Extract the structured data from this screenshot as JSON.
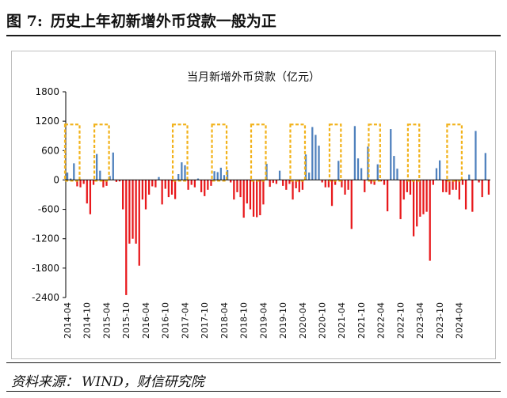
{
  "figure": {
    "label": "图 7:",
    "title": "历史上年初新增外币贷款一般为正"
  },
  "source": {
    "label": "资料来源：",
    "text": "WIND，财信研究院"
  },
  "colors": {
    "positive": "#4f81bd",
    "negative": "#e8191c",
    "highlight": "#f2b21a",
    "axis": "#000000"
  },
  "chart_data": {
    "type": "bar",
    "title": "当月新增外币贷款（亿元）",
    "xlabel": "",
    "ylabel": "",
    "ylim": [
      -2400,
      1800
    ],
    "yticks": [
      1800,
      1200,
      600,
      0,
      -600,
      -1200,
      -1800,
      -2400
    ],
    "xtick_labels": [
      "2014-04",
      "2014-10",
      "2015-04",
      "2015-10",
      "2016-04",
      "2016-10",
      "2017-04",
      "2017-10",
      "2018-04",
      "2018-10",
      "2019-04",
      "2019-10",
      "2020-04",
      "2020-10",
      "2021-04",
      "2021-10",
      "2022-04",
      "2022-10",
      "2023-04",
      "2023-10",
      "2024-04"
    ],
    "start_month": "2014-04",
    "series": [
      {
        "name": "当月新增外币贷款",
        "values": [
          150,
          30,
          340,
          -130,
          -150,
          -80,
          -480,
          -700,
          -100,
          530,
          190,
          -150,
          -120,
          80,
          560,
          -40,
          -30,
          -600,
          -2350,
          -1300,
          -1200,
          -1300,
          -1750,
          -400,
          -600,
          -300,
          -130,
          -150,
          60,
          -500,
          -180,
          -350,
          -300,
          -390,
          120,
          360,
          300,
          -200,
          -100,
          -150,
          30,
          -250,
          -330,
          -200,
          -120,
          180,
          160,
          250,
          100,
          200,
          -50,
          -400,
          -250,
          -350,
          -770,
          -480,
          -600,
          -750,
          -760,
          -720,
          -500,
          330,
          -140,
          -60,
          -80,
          190,
          -120,
          -200,
          -80,
          -400,
          -170,
          -250,
          -200,
          520,
          150,
          1080,
          920,
          700,
          -50,
          -150,
          -150,
          -530,
          -100,
          390,
          -150,
          -300,
          -200,
          -1000,
          1100,
          440,
          240,
          -250,
          680,
          -80,
          -100,
          320,
          -30,
          -100,
          -640,
          1040,
          490,
          230,
          -800,
          -400,
          -250,
          -300,
          -1150,
          -950,
          -750,
          -700,
          -650,
          -1650,
          -100,
          240,
          400,
          -250,
          -250,
          -300,
          -200,
          -200,
          -400,
          -100,
          -600,
          110,
          -650,
          1000,
          -50,
          -350,
          550,
          -300
        ]
      }
    ],
    "highlight_windows": [
      [
        "2014-04",
        "2014-07"
      ],
      [
        "2015-01",
        "2015-04"
      ],
      [
        "2017-01",
        "2017-04"
      ],
      [
        "2018-01",
        "2018-04"
      ],
      [
        "2019-01",
        "2019-04"
      ],
      [
        "2020-01",
        "2020-04"
      ],
      [
        "2021-01",
        "2021-03"
      ],
      [
        "2022-01",
        "2022-03"
      ],
      [
        "2023-01",
        "2023-03"
      ],
      [
        "2024-01",
        "2024-04"
      ]
    ]
  }
}
